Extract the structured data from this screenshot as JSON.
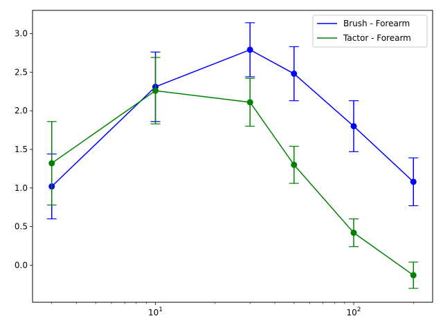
{
  "chart_data": {
    "type": "line",
    "title": "",
    "xlabel": "",
    "ylabel": "",
    "xscale": "log",
    "xlim": [
      2.4,
      250
    ],
    "ylim": [
      -0.48,
      3.3
    ],
    "legend_position": "top-right",
    "grid": false,
    "x_ticks": [
      {
        "value": 10,
        "base": "10",
        "exp": "1"
      },
      {
        "value": 100,
        "base": "10",
        "exp": "2"
      }
    ],
    "y_ticks": [
      {
        "value": 0.0,
        "label": "0.0"
      },
      {
        "value": 0.5,
        "label": "0.5"
      },
      {
        "value": 1.0,
        "label": "1.0"
      },
      {
        "value": 1.5,
        "label": "1.5"
      },
      {
        "value": 2.0,
        "label": "2.0"
      },
      {
        "value": 2.5,
        "label": "2.5"
      },
      {
        "value": 3.0,
        "label": "3.0"
      }
    ],
    "series": [
      {
        "name": "Brush - Forearm",
        "color": "#0000ff",
        "x": [
          3,
          10,
          30,
          50,
          100,
          200
        ],
        "y": [
          1.02,
          2.31,
          2.79,
          2.48,
          1.8,
          1.08
        ],
        "err": [
          0.42,
          0.45,
          0.35,
          0.35,
          0.33,
          0.31
        ]
      },
      {
        "name": "Tactor - Forearm",
        "color": "#008000",
        "x": [
          3,
          10,
          30,
          50,
          100,
          200
        ],
        "y": [
          1.32,
          2.26,
          2.11,
          1.3,
          0.42,
          -0.13
        ],
        "err": [
          0.54,
          0.43,
          0.31,
          0.24,
          0.18,
          0.17
        ]
      }
    ]
  }
}
